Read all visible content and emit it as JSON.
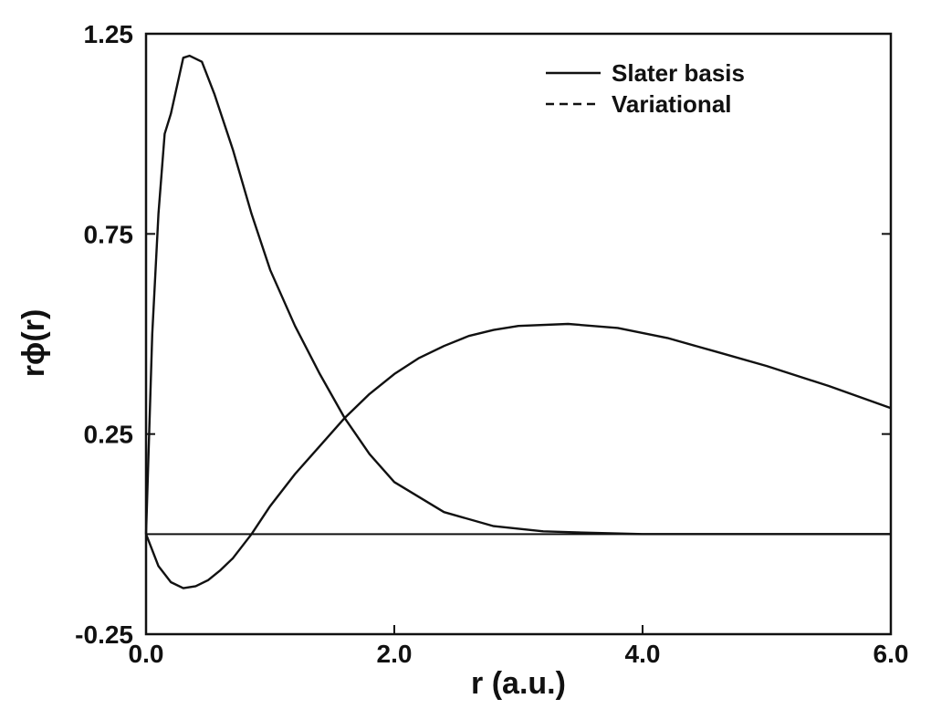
{
  "chart_data": {
    "type": "line",
    "xlabel": "r (a.u.)",
    "ylabel": "rϕ(r)",
    "xlim": [
      0,
      6
    ],
    "ylim": [
      -0.25,
      1.25
    ],
    "x_ticks": [
      0,
      2,
      4,
      6
    ],
    "x_tick_labels": [
      "0.0",
      "2.0",
      "4.0",
      "6.0"
    ],
    "y_ticks": [
      -0.25,
      0.25,
      0.75,
      1.25
    ],
    "y_tick_labels": [
      "-0.25",
      "0.25",
      "0.75",
      "1.25"
    ],
    "grid": false,
    "legend_position": "top-right",
    "legend": [
      {
        "label": "Slater basis",
        "style": "solid"
      },
      {
        "label": "Variational",
        "style": "dashed"
      }
    ],
    "series": [
      {
        "x": [
          0,
          0.05,
          0.1,
          0.15,
          0.2,
          0.3,
          0.35,
          0.45,
          0.55,
          0.7,
          0.85,
          1.0,
          1.2,
          1.4,
          1.6,
          1.8,
          2.0,
          2.4,
          2.8,
          3.2,
          3.6,
          4.0,
          5.0,
          6.0
        ],
        "values": [
          0,
          0.5,
          0.8,
          1.0,
          1.05,
          1.19,
          1.195,
          1.18,
          1.1,
          0.96,
          0.8,
          0.66,
          0.52,
          0.4,
          0.29,
          0.2,
          0.13,
          0.055,
          0.02,
          0.007,
          0.003,
          0.0,
          0.0,
          0.0
        ]
      },
      {
        "x": [
          0,
          0.1,
          0.2,
          0.3,
          0.4,
          0.5,
          0.6,
          0.7,
          0.85,
          1.0,
          1.2,
          1.4,
          1.6,
          1.8,
          2.0,
          2.2,
          2.4,
          2.6,
          2.8,
          3.0,
          3.4,
          3.8,
          4.2,
          4.6,
          5.0,
          5.5,
          6.0
        ],
        "values": [
          0,
          -0.08,
          -0.12,
          -0.135,
          -0.13,
          -0.115,
          -0.09,
          -0.06,
          0.0,
          0.07,
          0.15,
          0.22,
          0.29,
          0.35,
          0.4,
          0.44,
          0.47,
          0.495,
          0.51,
          0.52,
          0.525,
          0.515,
          0.49,
          0.455,
          0.42,
          0.37,
          0.315
        ]
      }
    ]
  }
}
